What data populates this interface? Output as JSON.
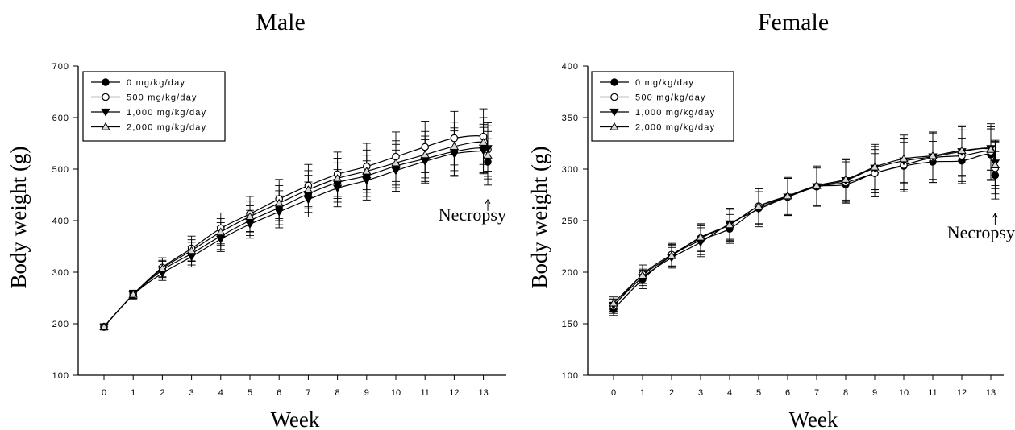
{
  "chart_data": [
    {
      "type": "line",
      "title": "Male",
      "xlabel": "Week",
      "ylabel": "Body weight (g)",
      "ylim": [
        100,
        700
      ],
      "yticks": [
        100,
        200,
        300,
        400,
        500,
        600,
        700
      ],
      "xticks": [
        0,
        1,
        2,
        3,
        4,
        5,
        6,
        7,
        8,
        9,
        10,
        11,
        12,
        13
      ],
      "legend_position": "top-left",
      "annotation": "Necropsy",
      "series": [
        {
          "name": "0 mg/kg/day",
          "marker": "filled-circle",
          "x": [
            0,
            1,
            2,
            3,
            4,
            5,
            6,
            7,
            8,
            9,
            10,
            11,
            12,
            13,
            13.15
          ],
          "values": [
            194,
            256,
            304,
            336,
            370,
            400,
            425,
            452,
            474,
            487,
            506,
            520,
            534,
            540,
            514
          ],
          "err": [
            6,
            8,
            17,
            22,
            26,
            29,
            33,
            36,
            38,
            40,
            42,
            44,
            46,
            47,
            45
          ]
        },
        {
          "name": "500 mg/kg/day",
          "marker": "open-circle",
          "x": [
            0,
            1,
            2,
            3,
            4,
            5,
            6,
            7,
            8,
            9,
            10,
            11,
            12,
            13,
            13.15
          ],
          "values": [
            194,
            257,
            309,
            346,
            385,
            413,
            442,
            468,
            490,
            505,
            524,
            543,
            560,
            563,
            538
          ],
          "err": [
            6,
            8,
            19,
            24,
            30,
            34,
            38,
            41,
            43,
            45,
            48,
            50,
            52,
            54,
            52
          ]
        },
        {
          "name": "1,000 mg/kg/day",
          "marker": "filled-triangle-down",
          "x": [
            0,
            1,
            2,
            3,
            4,
            5,
            6,
            7,
            8,
            9,
            10,
            11,
            12,
            13,
            13.15
          ],
          "values": [
            194,
            256,
            298,
            330,
            364,
            393,
            417,
            441,
            463,
            478,
            497,
            515,
            530,
            536,
            540
          ],
          "err": [
            5,
            7,
            14,
            20,
            24,
            27,
            31,
            34,
            36,
            38,
            40,
            42,
            44,
            45,
            44
          ]
        },
        {
          "name": "2,000 mg/kg/day",
          "marker": "open-triangle-up",
          "x": [
            0,
            1,
            2,
            3,
            4,
            5,
            6,
            7,
            8,
            9,
            10,
            11,
            12,
            13,
            13.15
          ],
          "values": [
            194,
            257,
            307,
            342,
            378,
            408,
            434,
            460,
            482,
            496,
            512,
            528,
            544,
            552,
            527
          ],
          "err": [
            6,
            8,
            16,
            21,
            26,
            30,
            34,
            37,
            39,
            41,
            43,
            45,
            47,
            48,
            46
          ]
        }
      ]
    },
    {
      "type": "line",
      "title": "Female",
      "xlabel": "Week",
      "ylabel": "Body weight (g)",
      "ylim": [
        100,
        400
      ],
      "yticks": [
        100,
        150,
        200,
        250,
        300,
        350,
        400
      ],
      "xticks": [
        0,
        1,
        2,
        3,
        4,
        5,
        6,
        7,
        8,
        9,
        10,
        11,
        12,
        13
      ],
      "legend_position": "top-left",
      "annotation": "Necropsy",
      "series": [
        {
          "name": "0 mg/kg/day",
          "marker": "filled-circle",
          "x": [
            0,
            1,
            2,
            3,
            4,
            5,
            6,
            7,
            8,
            9,
            10,
            11,
            12,
            13,
            13.15
          ],
          "values": [
            164,
            193,
            216,
            231,
            242,
            262,
            273,
            283,
            285,
            296,
            303,
            307,
            308,
            314,
            294
          ],
          "err": [
            6,
            9,
            11,
            14,
            14,
            16,
            18,
            19,
            17,
            19,
            23,
            20,
            22,
            25,
            23
          ]
        },
        {
          "name": "500 mg/kg/day",
          "marker": "open-circle",
          "x": [
            0,
            1,
            2,
            3,
            4,
            5,
            6,
            7,
            8,
            9,
            10,
            11,
            12,
            13,
            13.15
          ],
          "values": [
            167,
            198,
            217,
            233,
            246,
            264,
            273,
            283,
            287,
            296,
            304,
            311,
            313,
            317,
            301
          ],
          "err": [
            7,
            9,
            11,
            13,
            15,
            17,
            18,
            19,
            20,
            23,
            26,
            24,
            25,
            27,
            25
          ]
        },
        {
          "name": "1,000 mg/kg/day",
          "marker": "filled-triangle-down",
          "x": [
            0,
            1,
            2,
            3,
            4,
            5,
            6,
            7,
            8,
            9,
            10,
            11,
            12,
            13,
            13.15
          ],
          "values": [
            168,
            195,
            214,
            229,
            247,
            261,
            273,
            283,
            289,
            301,
            308,
            312,
            317,
            320,
            306
          ],
          "err": [
            6,
            8,
            10,
            14,
            15,
            17,
            18,
            18,
            20,
            21,
            22,
            22,
            24,
            21,
            22
          ]
        },
        {
          "name": "2,000 mg/kg/day",
          "marker": "open-triangle-up",
          "x": [
            0,
            1,
            2,
            3,
            4,
            5,
            6,
            7,
            8,
            9,
            10,
            11,
            12,
            13,
            13.15
          ],
          "values": [
            170,
            197,
            216,
            234,
            246,
            264,
            274,
            284,
            290,
            302,
            310,
            313,
            318,
            319,
            304
          ],
          "err": [
            6,
            8,
            10,
            13,
            16,
            17,
            18,
            19,
            20,
            22,
            23,
            23,
            24,
            20,
            23
          ]
        }
      ]
    }
  ]
}
